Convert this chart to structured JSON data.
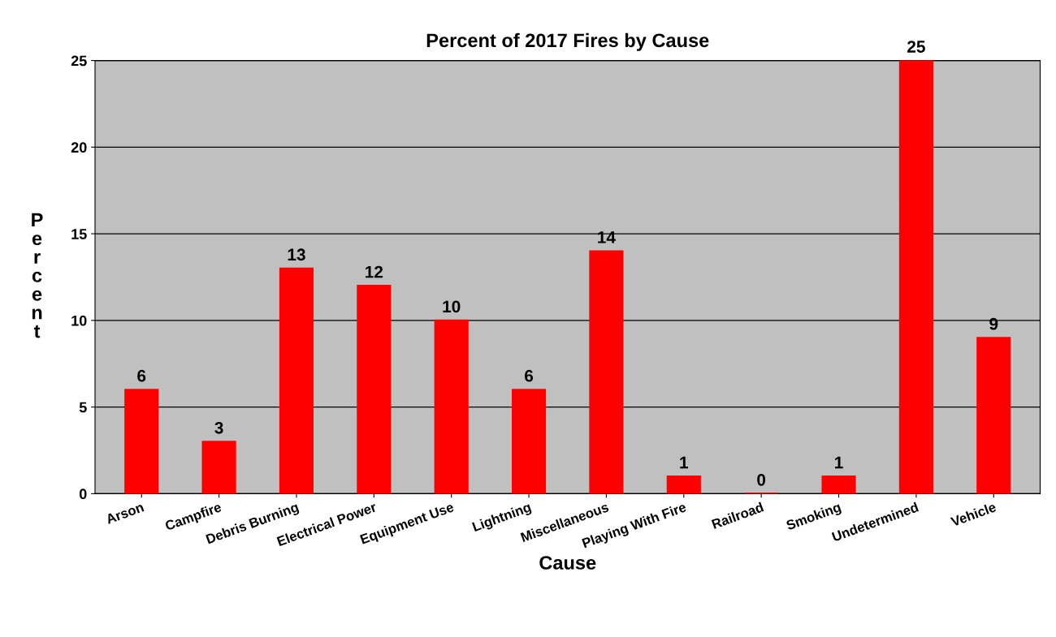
{
  "chart_data": {
    "type": "bar",
    "title": "Percent of 2017 Fires by Cause",
    "xlabel": "Cause",
    "ylabel": "Percent",
    "categories": [
      "Arson",
      "Campfire",
      "Debris Burning",
      "Electrical Power",
      "Equipment Use",
      "Lightning",
      "Miscellaneous",
      "Playing With Fire",
      "Railroad",
      "Smoking",
      "Undetermined",
      "Vehicle"
    ],
    "values": [
      6,
      3,
      13,
      12,
      10,
      6,
      14,
      1,
      0,
      1,
      25,
      9
    ],
    "color": "#ff0000",
    "ylim": [
      0,
      25
    ],
    "yticks": [
      0,
      5,
      10,
      15,
      20,
      25
    ],
    "grid": "y",
    "data_labels": true
  }
}
